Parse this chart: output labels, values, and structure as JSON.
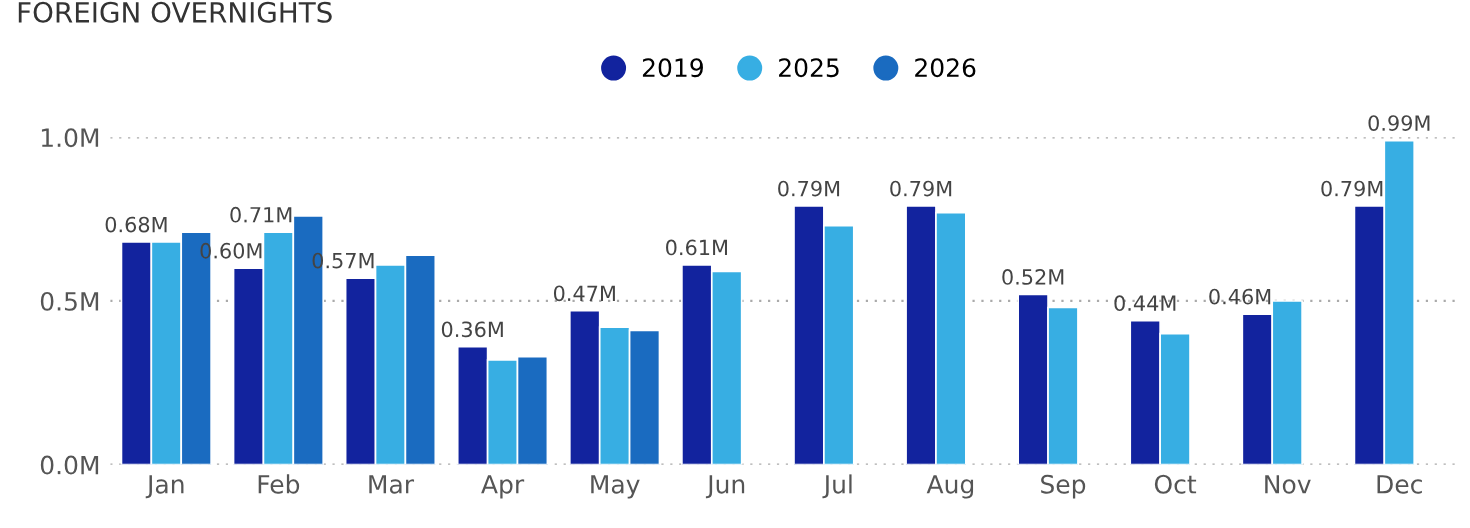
{
  "chart_data": {
    "type": "bar",
    "title": "FOREIGN OVERNIGHTS",
    "categories": [
      "Jan",
      "Feb",
      "Mar",
      "Apr",
      "May",
      "Jun",
      "Jul",
      "Aug",
      "Sep",
      "Oct",
      "Nov",
      "Dec"
    ],
    "series": [
      {
        "name": "2019",
        "color": "#12239e",
        "values": [
          0.68,
          0.6,
          0.57,
          0.36,
          0.47,
          0.61,
          0.79,
          0.79,
          0.52,
          0.44,
          0.46,
          0.79
        ],
        "value_labels": [
          "0.68M",
          "0.60M",
          "0.57M",
          "0.36M",
          "0.47M",
          "0.61M",
          "0.79M",
          "0.79M",
          "0.52M",
          "0.44M",
          "0.46M",
          "0.79M"
        ]
      },
      {
        "name": "2025",
        "color": "#37aee3",
        "values": [
          0.68,
          0.71,
          0.61,
          0.32,
          0.42,
          0.59,
          0.73,
          0.77,
          0.48,
          0.4,
          0.5,
          0.99
        ],
        "value_labels": [
          null,
          "0.71M",
          null,
          null,
          null,
          null,
          null,
          null,
          null,
          null,
          null,
          "0.99M"
        ]
      },
      {
        "name": "2026",
        "color": "#1a6bc0",
        "values": [
          0.71,
          0.76,
          0.64,
          0.33,
          0.41,
          null,
          null,
          null,
          null,
          null,
          null,
          null
        ]
      }
    ],
    "ylim": [
      0,
      1.0
    ],
    "yticks": [
      {
        "value": 0,
        "label": "0.0M"
      },
      {
        "value": 0.5,
        "label": "0.5M"
      },
      {
        "value": 1.0,
        "label": "1.0M"
      }
    ],
    "grid": "y",
    "legend": "top"
  }
}
